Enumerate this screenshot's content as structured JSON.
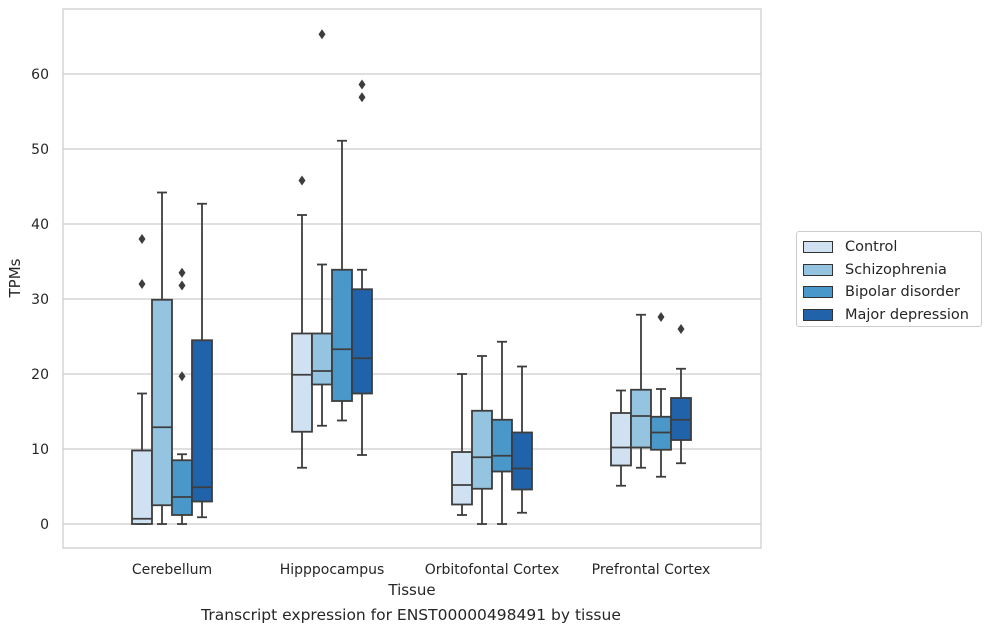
{
  "caption": "Transcript expression for ENST00000498491 by tissue",
  "chart_data": {
    "type": "box",
    "title": "",
    "xlabel": "Tissue",
    "ylabel": "TPMs",
    "ylim": [
      -3,
      69
    ],
    "yticks": [
      0,
      10,
      20,
      30,
      40,
      50,
      60
    ],
    "grid": "horizontal",
    "legend_position": "right",
    "categories": [
      "Cerebellum",
      "Hipppocampus",
      "Orbitofontal Cortex",
      "Prefrontal Cortex"
    ],
    "series": [
      {
        "name": "Control",
        "color": "#d0e1f2",
        "boxes": [
          {
            "whisker_low": 0,
            "q1": 0,
            "median": 0.7,
            "q3": 9.8,
            "whisker_high": 17.4,
            "outliers": [
              32,
              38
            ]
          },
          {
            "whisker_low": 7.5,
            "q1": 12.3,
            "median": 19.9,
            "q3": 25.4,
            "whisker_high": 41.2,
            "outliers": [
              45.8
            ]
          },
          {
            "whisker_low": 1.2,
            "q1": 2.6,
            "median": 5.2,
            "q3": 9.6,
            "whisker_high": 20.0,
            "outliers": []
          },
          {
            "whisker_low": 5.1,
            "q1": 7.8,
            "median": 10.2,
            "q3": 14.8,
            "whisker_high": 17.8,
            "outliers": []
          }
        ]
      },
      {
        "name": "Schizophrenia",
        "color": "#94c4df",
        "boxes": [
          {
            "whisker_low": 0,
            "q1": 2.5,
            "median": 12.9,
            "q3": 29.9,
            "whisker_high": 44.2,
            "outliers": []
          },
          {
            "whisker_low": 13.1,
            "q1": 18.6,
            "median": 20.4,
            "q3": 25.4,
            "whisker_high": 34.6,
            "outliers": [
              65.3
            ]
          },
          {
            "whisker_low": 0,
            "q1": 4.7,
            "median": 8.9,
            "q3": 15.1,
            "whisker_high": 22.4,
            "outliers": []
          },
          {
            "whisker_low": 7.5,
            "q1": 10.2,
            "median": 14.4,
            "q3": 17.9,
            "whisker_high": 27.9,
            "outliers": []
          }
        ]
      },
      {
        "name": "Bipolar disorder",
        "color": "#4a98c9",
        "boxes": [
          {
            "whisker_low": 0,
            "q1": 1.2,
            "median": 3.6,
            "q3": 8.5,
            "whisker_high": 9.3,
            "outliers": [
              19.7,
              31.8,
              33.5
            ]
          },
          {
            "whisker_low": 13.8,
            "q1": 16.4,
            "median": 23.3,
            "q3": 33.9,
            "whisker_high": 51.1,
            "outliers": []
          },
          {
            "whisker_low": 0,
            "q1": 7.0,
            "median": 9.1,
            "q3": 13.9,
            "whisker_high": 24.3,
            "outliers": []
          },
          {
            "whisker_low": 6.3,
            "q1": 9.9,
            "median": 12.2,
            "q3": 14.3,
            "whisker_high": 18.0,
            "outliers": [
              27.6
            ]
          }
        ]
      },
      {
        "name": "Major depression",
        "color": "#2163aa",
        "boxes": [
          {
            "whisker_low": 0.9,
            "q1": 3.0,
            "median": 4.9,
            "q3": 24.5,
            "whisker_high": 42.7,
            "outliers": []
          },
          {
            "whisker_low": 9.2,
            "q1": 17.4,
            "median": 22.1,
            "q3": 31.3,
            "whisker_high": 33.9,
            "outliers": [
              56.9,
              58.6
            ]
          },
          {
            "whisker_low": 1.5,
            "q1": 4.6,
            "median": 7.4,
            "q3": 12.2,
            "whisker_high": 21.0,
            "outliers": []
          },
          {
            "whisker_low": 8.1,
            "q1": 11.2,
            "median": 13.9,
            "q3": 16.8,
            "whisker_high": 20.7,
            "outliers": [
              26.0
            ]
          }
        ]
      }
    ]
  }
}
